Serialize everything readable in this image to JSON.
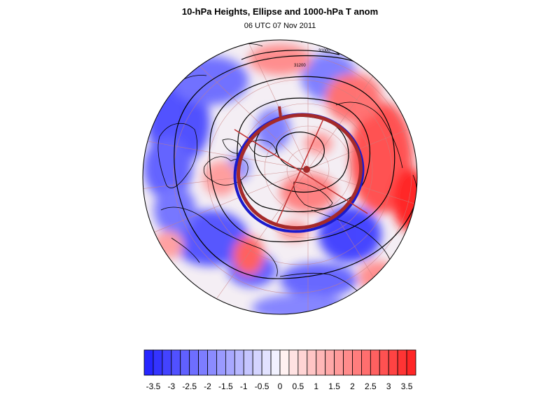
{
  "title": "10-hPa Heights, Ellipse and 1000-hPa T anom",
  "subtitle": "06 UTC 07 Nov 2011",
  "contour_labels": [
    "31000",
    "31200"
  ],
  "colorbar": {
    "labels": [
      "-3.5",
      "-3",
      "-2.5",
      "-2",
      "-1.5",
      "-1",
      "-0.5",
      "0",
      "0.5",
      "1",
      "1.5",
      "2",
      "2.5",
      "3",
      "3.5"
    ],
    "min": -3.75,
    "max": 3.75,
    "step": 0.25,
    "negative_color": "#1a1aff",
    "positive_color": "#ff1a1a"
  },
  "colors": {
    "ellipse_outer": "#a52a2a",
    "ellipse_inner": "#1a1acc",
    "coast": "#000000",
    "graticule": "#c98080"
  }
}
